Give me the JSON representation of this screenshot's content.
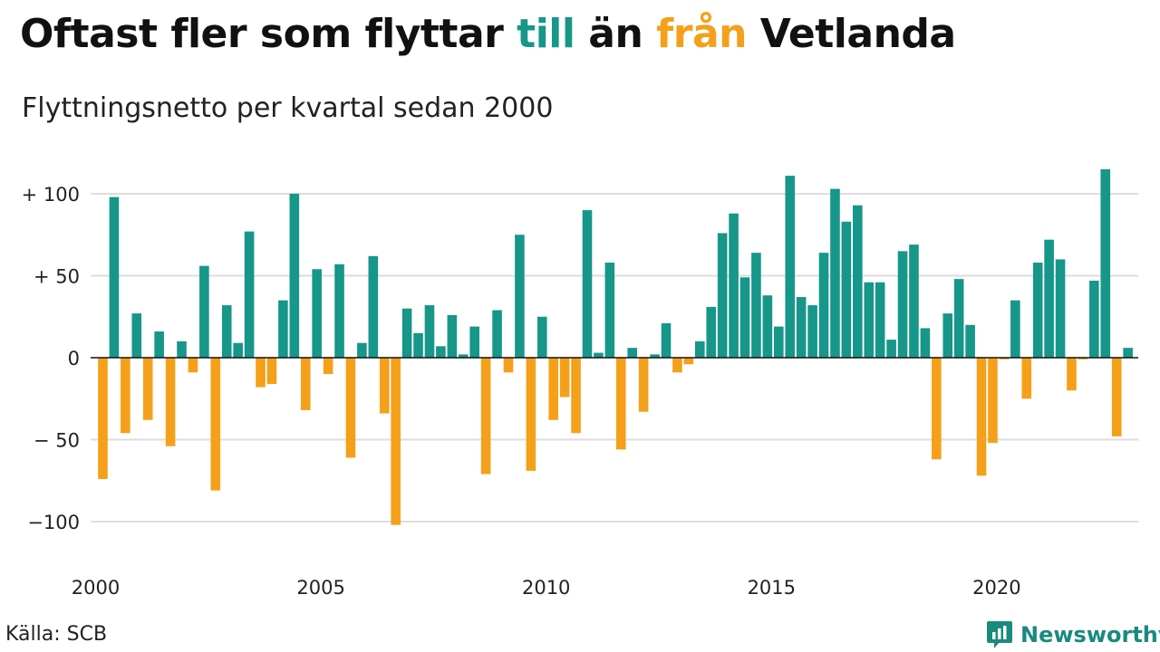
{
  "title": {
    "part1": "Oftast fler som flyttar ",
    "till": "till",
    "part2": " än ",
    "fran": "från",
    "part3": " Vetlanda"
  },
  "subtitle": "Flyttningsnetto per kvartal sedan 2000",
  "source": "Källa: SCB",
  "brand": "Newsworthy",
  "colors": {
    "positive": "#17968a",
    "negative": "#f5a01a",
    "grid": "#dddddd",
    "zero": "#111111",
    "brand": "#1a8a7e"
  },
  "chart_data": {
    "type": "bar",
    "x_start": "2000 Q1",
    "ylim": [
      -110,
      115
    ],
    "y_ticks": [
      {
        "value": 100,
        "label": "+ 100"
      },
      {
        "value": 50,
        "label": "+  50"
      },
      {
        "value": 0,
        "label": "0"
      },
      {
        "value": -50,
        "label": "− 50"
      },
      {
        "value": -100,
        "label": "−100"
      }
    ],
    "x_ticks": [
      {
        "index": 0,
        "label": "2000"
      },
      {
        "index": 20,
        "label": "2005"
      },
      {
        "index": 40,
        "label": "2010"
      },
      {
        "index": 60,
        "label": "2015"
      },
      {
        "index": 80,
        "label": "2020"
      }
    ],
    "values": [
      -74,
      98,
      -46,
      27,
      -38,
      16,
      -54,
      10,
      -9,
      56,
      -81,
      32,
      9,
      77,
      -18,
      -16,
      35,
      100,
      -32,
      54,
      -10,
      57,
      -61,
      9,
      62,
      -34,
      -102,
      30,
      15,
      32,
      7,
      26,
      2,
      19,
      -71,
      29,
      -9,
      75,
      -69,
      25,
      -38,
      -24,
      -46,
      90,
      3,
      58,
      -56,
      6,
      -33,
      2,
      21,
      -9,
      -4,
      10,
      31,
      76,
      88,
      49,
      64,
      38,
      19,
      111,
      37,
      32,
      64,
      103,
      83,
      93,
      46,
      46,
      11,
      65,
      69,
      18,
      -62,
      27,
      48,
      20,
      -72,
      -52,
      -1,
      35,
      -25,
      58,
      72,
      60,
      -20,
      -1,
      47,
      115,
      -48,
      6
    ]
  }
}
